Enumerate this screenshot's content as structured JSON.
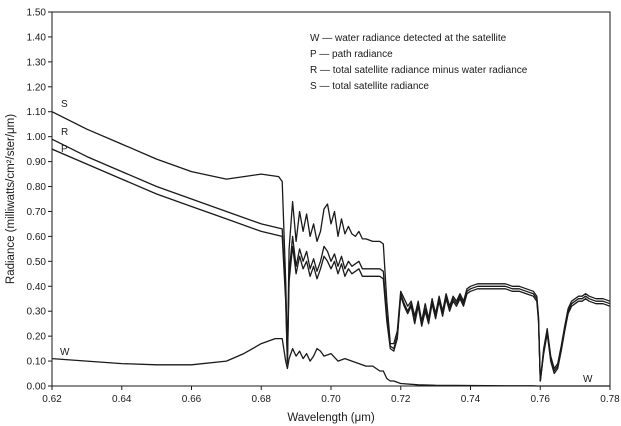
{
  "chart_data": {
    "type": "line",
    "xlabel": "Wavelength (μm)",
    "ylabel": "Radiance (milliwatts/cm²/ster/μm)",
    "xlim": [
      0.62,
      0.78
    ],
    "ylim": [
      0.0,
      1.5
    ],
    "xticks": [
      "0.62",
      "0.64",
      "0.66",
      "0.68",
      "0.70",
      "0.72",
      "0.74",
      "0.76",
      "0.78"
    ],
    "yticks": [
      "0.00",
      "0.10",
      "0.20",
      "0.30",
      "0.40",
      "0.50",
      "0.60",
      "0.70",
      "0.80",
      "0.90",
      "1.00",
      "1.10",
      "1.20",
      "1.30",
      "1.40",
      "1.50"
    ],
    "grid": false,
    "legend_position": "top-right",
    "legend": [
      "W — water radiance detected at the satellite",
      "P — path radiance",
      "R — total satellite radiance minus water radiance",
      "S — total satellite radiance"
    ],
    "curve_labels": {
      "S": "S",
      "R": "R",
      "P": "P",
      "W_left": "W",
      "W_right": "W"
    },
    "series": [
      {
        "name": "S",
        "x": [
          0.62,
          0.63,
          0.64,
          0.65,
          0.66,
          0.67,
          0.675,
          0.68,
          0.685,
          0.686,
          0.687,
          0.6875,
          0.688,
          0.689,
          0.69,
          0.691,
          0.692,
          0.693,
          0.694,
          0.695,
          0.696,
          0.697,
          0.698,
          0.699,
          0.7,
          0.701,
          0.702,
          0.703,
          0.704,
          0.705,
          0.706,
          0.707,
          0.708,
          0.709,
          0.71,
          0.712,
          0.714,
          0.715,
          0.716,
          0.717,
          0.718,
          0.719,
          0.72,
          0.721,
          0.722,
          0.723,
          0.724,
          0.725,
          0.726,
          0.727,
          0.728,
          0.729,
          0.73,
          0.731,
          0.732,
          0.733,
          0.734,
          0.735,
          0.736,
          0.737,
          0.738,
          0.739,
          0.74,
          0.742,
          0.744,
          0.746,
          0.748,
          0.75,
          0.752,
          0.754,
          0.756,
          0.758,
          0.759,
          0.7595,
          0.76,
          0.761,
          0.762,
          0.763,
          0.764,
          0.765,
          0.766,
          0.767,
          0.768,
          0.769,
          0.77,
          0.771,
          0.772,
          0.773,
          0.774,
          0.776,
          0.778,
          0.78
        ],
        "y": [
          1.1,
          1.03,
          0.97,
          0.91,
          0.86,
          0.83,
          0.84,
          0.85,
          0.84,
          0.82,
          0.42,
          0.12,
          0.55,
          0.74,
          0.58,
          0.7,
          0.62,
          0.69,
          0.6,
          0.65,
          0.58,
          0.62,
          0.71,
          0.73,
          0.65,
          0.7,
          0.6,
          0.67,
          0.61,
          0.64,
          0.61,
          0.6,
          0.62,
          0.59,
          0.59,
          0.58,
          0.58,
          0.57,
          0.34,
          0.17,
          0.17,
          0.22,
          0.38,
          0.35,
          0.32,
          0.34,
          0.28,
          0.34,
          0.26,
          0.33,
          0.27,
          0.35,
          0.29,
          0.36,
          0.3,
          0.37,
          0.32,
          0.36,
          0.34,
          0.37,
          0.34,
          0.39,
          0.4,
          0.41,
          0.41,
          0.41,
          0.41,
          0.41,
          0.4,
          0.4,
          0.39,
          0.38,
          0.36,
          0.28,
          0.02,
          0.15,
          0.23,
          0.12,
          0.07,
          0.09,
          0.16,
          0.24,
          0.31,
          0.34,
          0.35,
          0.36,
          0.36,
          0.37,
          0.36,
          0.35,
          0.35,
          0.34
        ]
      },
      {
        "name": "R",
        "x": [
          0.62,
          0.63,
          0.64,
          0.65,
          0.66,
          0.67,
          0.68,
          0.686,
          0.687,
          0.6875,
          0.688,
          0.689,
          0.69,
          0.691,
          0.692,
          0.693,
          0.694,
          0.695,
          0.696,
          0.697,
          0.698,
          0.699,
          0.7,
          0.701,
          0.702,
          0.703,
          0.704,
          0.705,
          0.706,
          0.707,
          0.708,
          0.709,
          0.71,
          0.712,
          0.714,
          0.715,
          0.716,
          0.717,
          0.718,
          0.719,
          0.72,
          0.721,
          0.722,
          0.723,
          0.724,
          0.725,
          0.726,
          0.727,
          0.728,
          0.729,
          0.73,
          0.731,
          0.732,
          0.733,
          0.734,
          0.735,
          0.736,
          0.737,
          0.738,
          0.739,
          0.74,
          0.742,
          0.744,
          0.746,
          0.748,
          0.75,
          0.752,
          0.754,
          0.756,
          0.758,
          0.759,
          0.7595,
          0.76,
          0.761,
          0.762,
          0.763,
          0.764,
          0.765,
          0.766,
          0.767,
          0.768,
          0.769,
          0.77,
          0.771,
          0.772,
          0.773,
          0.774,
          0.776,
          0.778,
          0.78
        ],
        "y": [
          0.99,
          0.92,
          0.86,
          0.8,
          0.75,
          0.7,
          0.65,
          0.63,
          0.36,
          0.1,
          0.45,
          0.6,
          0.48,
          0.55,
          0.5,
          0.54,
          0.47,
          0.51,
          0.46,
          0.5,
          0.56,
          0.54,
          0.5,
          0.53,
          0.48,
          0.52,
          0.47,
          0.5,
          0.48,
          0.49,
          0.5,
          0.47,
          0.47,
          0.47,
          0.47,
          0.46,
          0.28,
          0.16,
          0.15,
          0.2,
          0.37,
          0.33,
          0.3,
          0.33,
          0.26,
          0.33,
          0.25,
          0.31,
          0.26,
          0.34,
          0.28,
          0.35,
          0.29,
          0.36,
          0.31,
          0.35,
          0.33,
          0.36,
          0.33,
          0.38,
          0.39,
          0.4,
          0.4,
          0.4,
          0.4,
          0.4,
          0.39,
          0.39,
          0.38,
          0.37,
          0.35,
          0.27,
          0.02,
          0.14,
          0.22,
          0.11,
          0.06,
          0.08,
          0.15,
          0.23,
          0.3,
          0.33,
          0.34,
          0.35,
          0.35,
          0.36,
          0.35,
          0.34,
          0.34,
          0.33
        ]
      },
      {
        "name": "P",
        "x": [
          0.62,
          0.63,
          0.64,
          0.65,
          0.66,
          0.67,
          0.68,
          0.686,
          0.687,
          0.6875,
          0.688,
          0.689,
          0.69,
          0.691,
          0.692,
          0.693,
          0.694,
          0.695,
          0.696,
          0.697,
          0.698,
          0.699,
          0.7,
          0.701,
          0.702,
          0.703,
          0.704,
          0.705,
          0.706,
          0.707,
          0.708,
          0.709,
          0.71,
          0.712,
          0.714,
          0.715,
          0.716,
          0.717,
          0.718,
          0.719,
          0.72,
          0.721,
          0.722,
          0.723,
          0.724,
          0.725,
          0.726,
          0.727,
          0.728,
          0.729,
          0.73,
          0.731,
          0.732,
          0.733,
          0.734,
          0.735,
          0.736,
          0.737,
          0.738,
          0.739,
          0.74,
          0.742,
          0.744,
          0.746,
          0.748,
          0.75,
          0.752,
          0.754,
          0.756,
          0.758,
          0.759,
          0.7595,
          0.76,
          0.761,
          0.762,
          0.763,
          0.764,
          0.765,
          0.766,
          0.767,
          0.768,
          0.769,
          0.77,
          0.771,
          0.772,
          0.773,
          0.774,
          0.776,
          0.778,
          0.78
        ],
        "y": [
          0.95,
          0.89,
          0.83,
          0.77,
          0.72,
          0.67,
          0.62,
          0.6,
          0.34,
          0.09,
          0.42,
          0.56,
          0.45,
          0.52,
          0.47,
          0.5,
          0.44,
          0.48,
          0.43,
          0.47,
          0.52,
          0.5,
          0.47,
          0.5,
          0.45,
          0.49,
          0.44,
          0.47,
          0.45,
          0.46,
          0.47,
          0.44,
          0.44,
          0.44,
          0.44,
          0.43,
          0.26,
          0.15,
          0.14,
          0.19,
          0.36,
          0.32,
          0.29,
          0.32,
          0.25,
          0.32,
          0.24,
          0.3,
          0.25,
          0.33,
          0.27,
          0.34,
          0.28,
          0.35,
          0.3,
          0.34,
          0.32,
          0.35,
          0.32,
          0.37,
          0.38,
          0.39,
          0.39,
          0.39,
          0.39,
          0.39,
          0.38,
          0.38,
          0.37,
          0.36,
          0.34,
          0.26,
          0.02,
          0.13,
          0.21,
          0.1,
          0.05,
          0.07,
          0.14,
          0.22,
          0.29,
          0.32,
          0.33,
          0.34,
          0.34,
          0.35,
          0.34,
          0.33,
          0.33,
          0.32
        ]
      },
      {
        "name": "W",
        "x": [
          0.62,
          0.63,
          0.64,
          0.65,
          0.66,
          0.67,
          0.675,
          0.68,
          0.684,
          0.686,
          0.687,
          0.6875,
          0.688,
          0.689,
          0.69,
          0.691,
          0.692,
          0.693,
          0.694,
          0.695,
          0.696,
          0.697,
          0.698,
          0.7,
          0.702,
          0.704,
          0.706,
          0.708,
          0.71,
          0.712,
          0.714,
          0.715,
          0.716,
          0.717,
          0.718,
          0.72,
          0.725,
          0.73,
          0.74,
          0.75,
          0.758,
          0.759,
          0.76,
          0.762,
          0.766,
          0.77,
          0.775,
          0.78
        ],
        "y": [
          0.11,
          0.1,
          0.09,
          0.085,
          0.085,
          0.1,
          0.13,
          0.17,
          0.19,
          0.19,
          0.1,
          0.07,
          0.11,
          0.15,
          0.12,
          0.14,
          0.11,
          0.13,
          0.1,
          0.12,
          0.15,
          0.14,
          0.12,
          0.13,
          0.1,
          0.11,
          0.1,
          0.09,
          0.08,
          0.08,
          0.06,
          0.06,
          0.03,
          0.02,
          0.02,
          0.01,
          0.005,
          0.003,
          0.002,
          0.001,
          0.001,
          0.0,
          0.0,
          0.0,
          0.0,
          0.0,
          0.0,
          0.0
        ]
      }
    ]
  }
}
